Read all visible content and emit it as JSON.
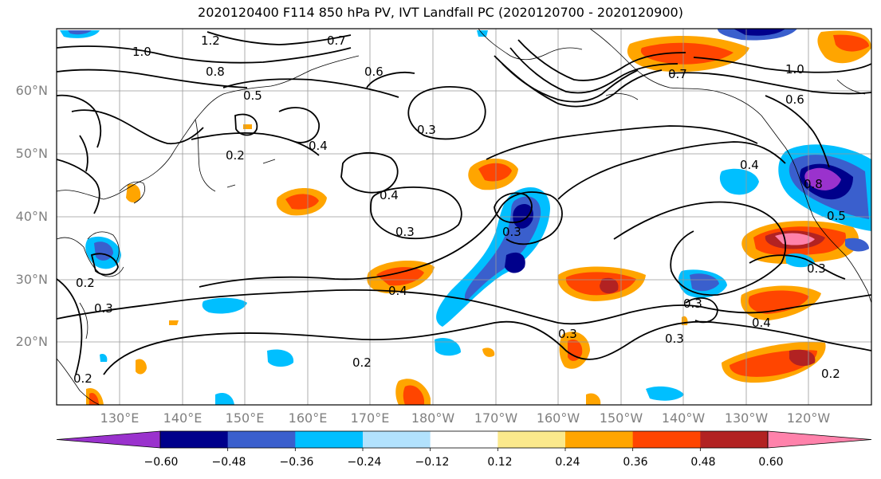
{
  "title": "2020120400 F114 850 hPa PV, IVT Landfall PC (2020120700 - 2020120900)",
  "lat_labels": [
    "60°N",
    "50°N",
    "40°N",
    "30°N",
    "20°N"
  ],
  "lon_labels": [
    "130°E",
    "140°E",
    "150°E",
    "160°E",
    "170°E",
    "180°W",
    "170°W",
    "160°W",
    "150°W",
    "140°W",
    "130°W",
    "120°W"
  ],
  "colorbar": {
    "ticks": [
      "−0.60",
      "−0.48",
      "−0.36",
      "−0.24",
      "−0.12",
      "0.12",
      "0.24",
      "0.36",
      "0.48",
      "0.60"
    ],
    "colors": [
      "#9a32cd",
      "#00008b",
      "#3a5fcd",
      "#00bfff",
      "#b2e2fd",
      "#ffffff",
      "#fbe98c",
      "#ffa500",
      "#ff4500",
      "#b22222",
      "#ff82ab"
    ]
  },
  "contour_labels": [
    "1.0",
    "1.2",
    "0.7",
    "0.6",
    "0.8",
    "0.5",
    "0.2",
    "0.4",
    "0.3",
    "0.4",
    "0.3",
    "0.4",
    "0.2",
    "0.3",
    "0.2",
    "0.3",
    "0.4",
    "0.3",
    "0.7",
    "1.0",
    "0.6",
    "0.8",
    "0.5",
    "0.3",
    "0.4",
    "0.3",
    "0.2",
    "0.3",
    "0.2"
  ]
}
